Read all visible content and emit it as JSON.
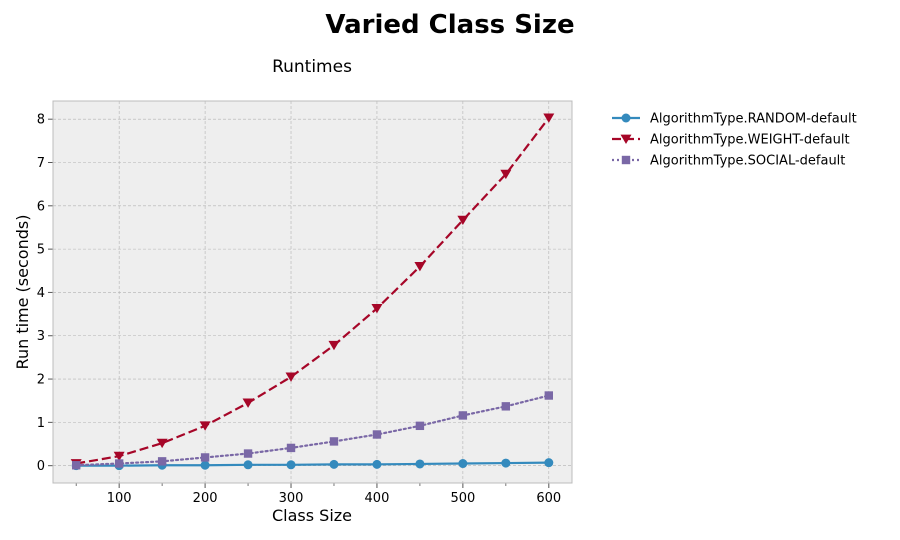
{
  "chart_data": {
    "type": "line",
    "suptitle": "Varied Class Size",
    "title": "Runtimes",
    "xlabel": "Class Size",
    "ylabel": "Run time (seconds)",
    "xlim": [
      23,
      627
    ],
    "ylim": [
      -0.4,
      8.42
    ],
    "xticks": [
      100,
      200,
      300,
      400,
      500,
      600
    ],
    "yticks": [
      0,
      1,
      2,
      3,
      4,
      5,
      6,
      7,
      8
    ],
    "grid": true,
    "legend_position": "outside-top-right",
    "x": [
      50,
      100,
      150,
      200,
      250,
      300,
      350,
      400,
      450,
      500,
      550,
      600
    ],
    "series": [
      {
        "name": "AlgorithmType.RANDOM-default",
        "color": "#348abd",
        "line_style": "solid",
        "marker": "circle",
        "values": [
          0.0,
          0.0,
          0.01,
          0.01,
          0.02,
          0.02,
          0.03,
          0.03,
          0.04,
          0.05,
          0.06,
          0.07
        ]
      },
      {
        "name": "AlgorithmType.WEIGHT-default",
        "color": "#a60628",
        "line_style": "dashed",
        "marker": "triangle-down",
        "values": [
          0.05,
          0.22,
          0.52,
          0.92,
          1.45,
          2.05,
          2.78,
          3.63,
          4.6,
          5.67,
          6.73,
          8.03
        ]
      },
      {
        "name": "AlgorithmType.SOCIAL-default",
        "color": "#7a68a6",
        "line_style": "dotted",
        "marker": "square",
        "values": [
          0.01,
          0.05,
          0.1,
          0.19,
          0.28,
          0.41,
          0.56,
          0.72,
          0.92,
          1.16,
          1.37,
          1.62
        ]
      }
    ]
  },
  "colors": {
    "plot_background": "#eeeeee",
    "plot_border": "#bcbcbc",
    "grid": "#b2b2b2"
  }
}
